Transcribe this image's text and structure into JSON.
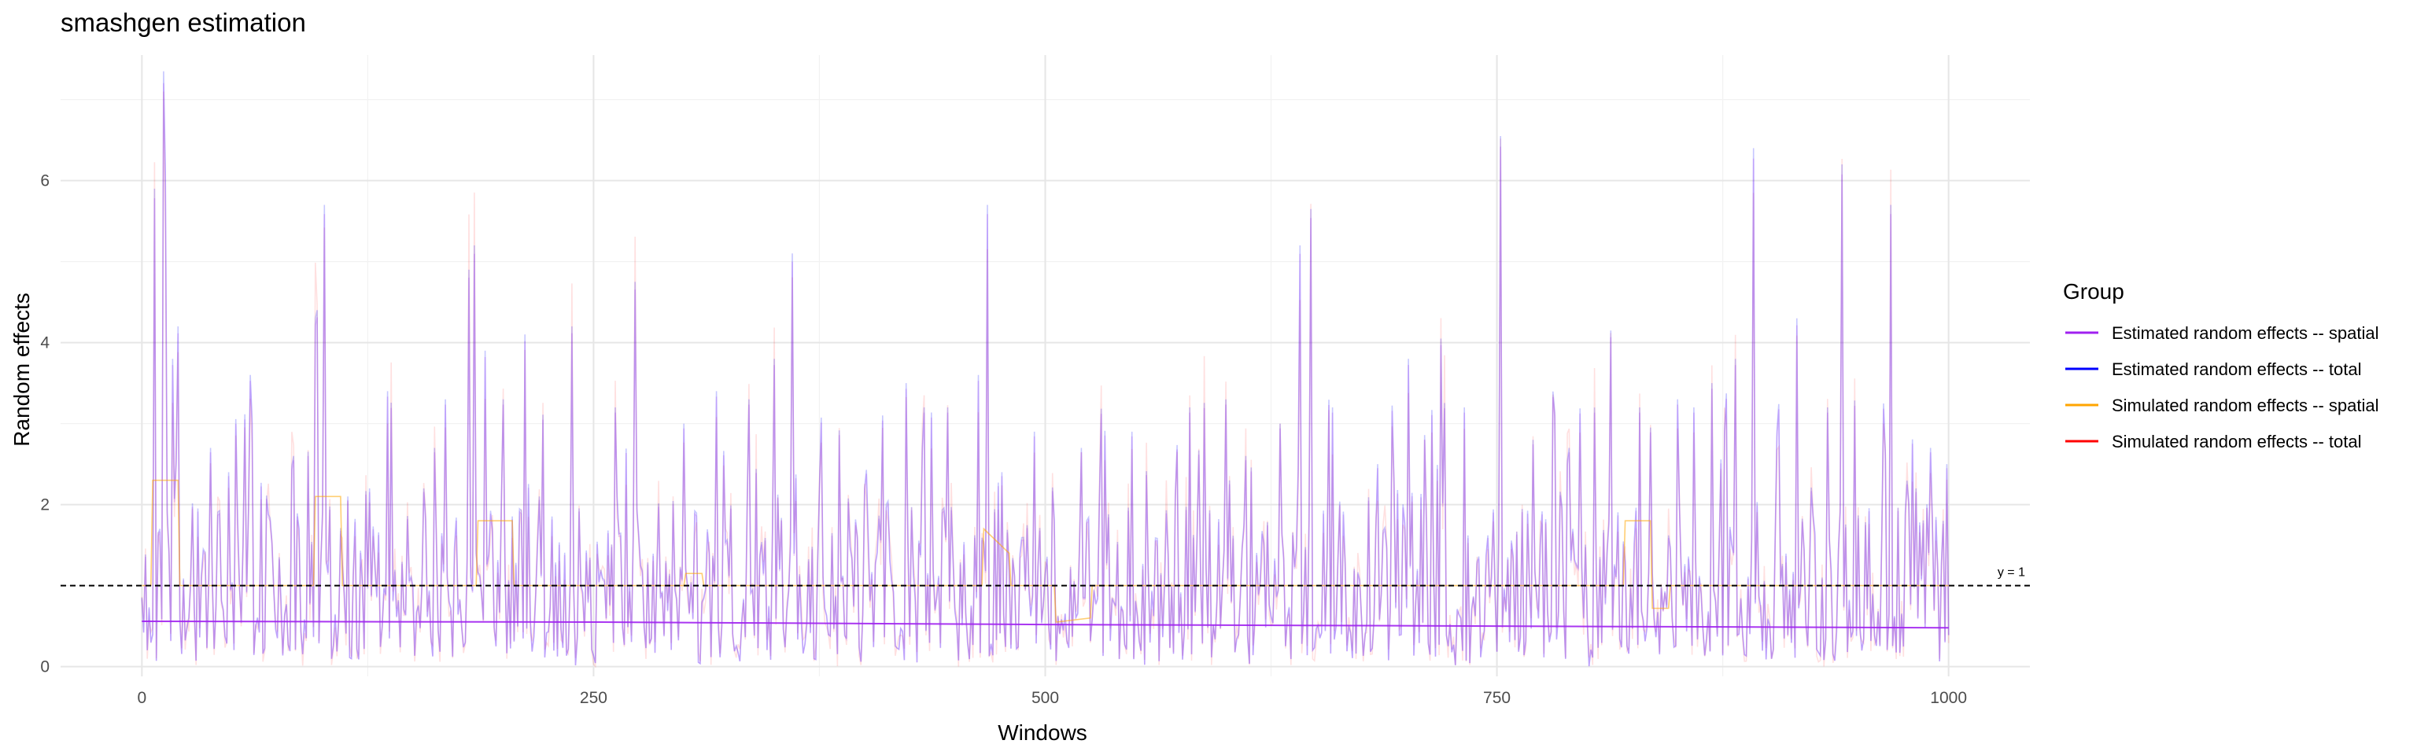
{
  "chart_data": {
    "type": "line",
    "title": "smashgen estimation",
    "xlabel": "Windows",
    "ylabel": "Random effects",
    "xlim": [
      -45,
      1045
    ],
    "ylim": [
      -0.12,
      7.55
    ],
    "x_ticks": [
      0,
      250,
      500,
      750,
      1000
    ],
    "y_ticks": [
      0,
      2,
      4,
      6
    ],
    "grid": true,
    "legend": {
      "title": "Group",
      "position": "right",
      "entries": [
        {
          "label": "Estimated random effects -- spatial",
          "color": "#A020F0"
        },
        {
          "label": "Estimated random effects -- total",
          "color": "#0000FF"
        },
        {
          "label": "Simulated random effects -- spatial",
          "color": "#FFA500"
        },
        {
          "label": "Simulated random effects -- total",
          "color": "#FF0000"
        }
      ]
    },
    "reference_line": {
      "y": 1,
      "label": "y = 1",
      "style": "dashed"
    },
    "series": [
      {
        "name": "Estimated random effects -- spatial",
        "color": "#A020F0",
        "opacity": 0.9,
        "width": 2,
        "x": [
          0,
          250,
          500,
          750,
          1000
        ],
        "values": [
          0.56,
          0.55,
          0.52,
          0.5,
          0.48
        ]
      },
      {
        "name": "Simulated random effects -- spatial",
        "color": "#FFA500",
        "opacity": 0.55,
        "width": 1.6,
        "x": [
          0,
          5,
          6,
          20,
          21,
          95,
          96,
          110,
          111,
          185,
          186,
          205,
          206,
          300,
          301,
          310,
          311,
          465,
          466,
          480,
          481,
          505,
          506,
          525,
          526,
          820,
          821,
          835,
          836,
          845,
          846,
          1000
        ],
        "values": [
          1.0,
          1.0,
          2.3,
          2.3,
          1.0,
          1.0,
          2.1,
          2.1,
          1.0,
          1.0,
          1.8,
          1.8,
          1.0,
          1.0,
          1.15,
          1.15,
          1.0,
          1.0,
          1.7,
          1.4,
          1.0,
          1.0,
          0.55,
          0.6,
          1.0,
          1.0,
          1.8,
          1.8,
          0.72,
          0.72,
          1.0,
          1.0
        ]
      },
      {
        "name": "Estimated random effects -- total",
        "color": "#0000FF",
        "opacity": 0.22,
        "width": 1.6,
        "x": [
          0,
          1000
        ],
        "values": [
          0,
          0
        ],
        "note": "dense series drawn procedurally with peaks below"
      },
      {
        "name": "Simulated random effects -- total",
        "color": "#FF0000",
        "opacity": 0.12,
        "width": 1.6,
        "x": [
          0,
          1000
        ],
        "values": [
          0,
          0
        ]
      }
    ],
    "peaks": [
      [
        7,
        5.9
      ],
      [
        10,
        1.7
      ],
      [
        12,
        7.35
      ],
      [
        13,
        6.1
      ],
      [
        17,
        3.8
      ],
      [
        20,
        4.2
      ],
      [
        38,
        2.7
      ],
      [
        48,
        2.4
      ],
      [
        60,
        3.6
      ],
      [
        84,
        2.6
      ],
      [
        96,
        4.3
      ],
      [
        97,
        4.4
      ],
      [
        101,
        5.7
      ],
      [
        114,
        2.1
      ],
      [
        126,
        2.2
      ],
      [
        136,
        3.4
      ],
      [
        156,
        2.2
      ],
      [
        162,
        2.7
      ],
      [
        168,
        3.3
      ],
      [
        181,
        4.9
      ],
      [
        184,
        5.2
      ],
      [
        190,
        3.9
      ],
      [
        200,
        3.3
      ],
      [
        212,
        4.1
      ],
      [
        220,
        2.1
      ],
      [
        238,
        4.2
      ],
      [
        262,
        3.2
      ],
      [
        273,
        4.75
      ],
      [
        300,
        3.0
      ],
      [
        318,
        3.4
      ],
      [
        336,
        3.3
      ],
      [
        350,
        3.8
      ],
      [
        360,
        5.1
      ],
      [
        375,
        2.2
      ],
      [
        400,
        2.2
      ],
      [
        410,
        3.1
      ],
      [
        423,
        3.5
      ],
      [
        433,
        3.2
      ],
      [
        446,
        3.2
      ],
      [
        463,
        3.6
      ],
      [
        468,
        5.7
      ],
      [
        476,
        2.4
      ],
      [
        494,
        2.9
      ],
      [
        520,
        2.7
      ],
      [
        530,
        2.1
      ],
      [
        548,
        2.9
      ],
      [
        580,
        3.2
      ],
      [
        600,
        3.3
      ],
      [
        611,
        2.6
      ],
      [
        630,
        3.0
      ],
      [
        641,
        5.2
      ],
      [
        647,
        5.65
      ],
      [
        659,
        3.2
      ],
      [
        684,
        2.5
      ],
      [
        701,
        3.8
      ],
      [
        719,
        4.05
      ],
      [
        732,
        3.2
      ],
      [
        752,
        6.55
      ],
      [
        770,
        2.8
      ],
      [
        790,
        2.7
      ],
      [
        813,
        4.15
      ],
      [
        829,
        3.2
      ],
      [
        850,
        3.3
      ],
      [
        859,
        3.2
      ],
      [
        869,
        3.5
      ],
      [
        882,
        3.8
      ],
      [
        892,
        6.4
      ],
      [
        905,
        2.9
      ],
      [
        916,
        4.3
      ],
      [
        933,
        3.2
      ],
      [
        941,
        6.2
      ],
      [
        968,
        5.7
      ],
      [
        982,
        2.2
      ],
      [
        990,
        2.7
      ],
      [
        997,
        1.8
      ],
      [
        999,
        2.5
      ]
    ]
  }
}
